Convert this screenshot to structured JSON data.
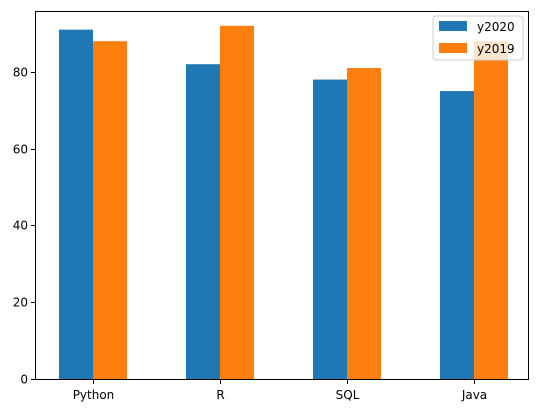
{
  "chart_data": {
    "type": "bar",
    "categories": [
      "Python",
      "R",
      "SQL",
      "Java"
    ],
    "series": [
      {
        "name": "y2020",
        "values": [
          91,
          82,
          78,
          75
        ],
        "color": "#1f77b4"
      },
      {
        "name": "y2019",
        "values": [
          88,
          92,
          81,
          88
        ],
        "color": "#ff7f0e"
      }
    ],
    "y_ticks": [
      "0",
      "20",
      "40",
      "60",
      "80"
    ],
    "ylim": [
      0,
      95.6
    ],
    "grid": false,
    "legend_position": "top-right"
  }
}
